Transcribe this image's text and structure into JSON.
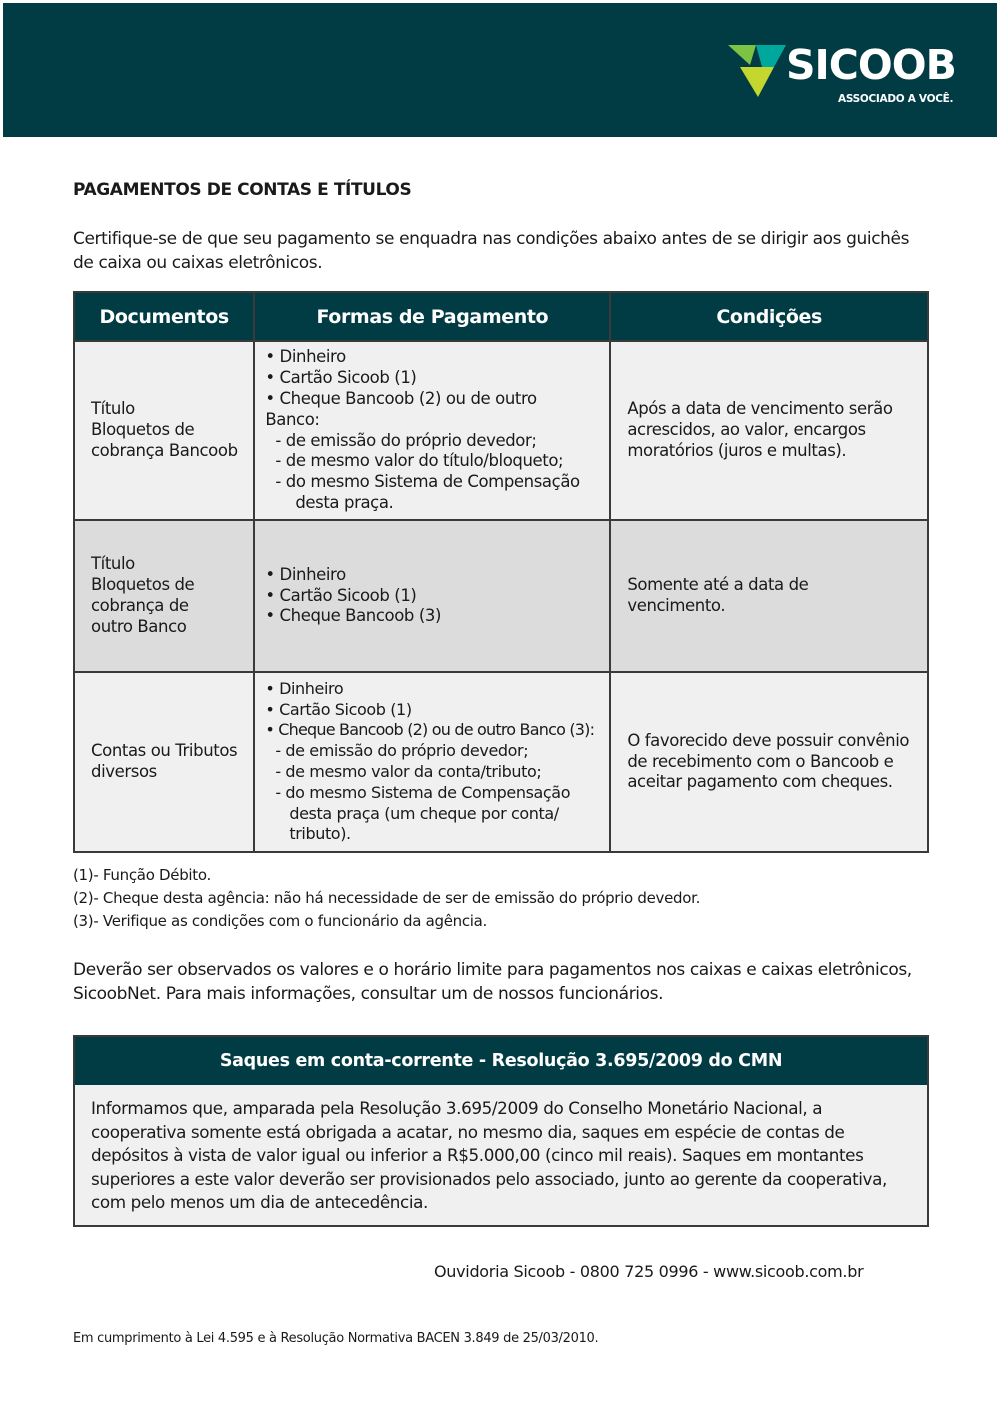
{
  "header": {
    "brand": "SICOOB",
    "tagline": "ASSOCIADO A VOCÊ.",
    "colors": {
      "band": "#013c44",
      "logo_green": "#7dc242",
      "logo_teal": "#00a79d",
      "logo_lime": "#c4d72e"
    }
  },
  "title": "PAGAMENTOS DE CONTAS E TÍTULOS",
  "intro": "Certifique-se de que seu pagamento se enquadra nas condições abaixo antes de se dirigir aos guichês de caixa ou caixas eletrônicos.",
  "table": {
    "headers": [
      "Documentos",
      "Formas de Pagamento",
      "Condições"
    ],
    "rows": [
      {
        "doc": [
          "Título",
          "Bloquetos de",
          "cobrança Bancoob"
        ],
        "forms": [
          "• Dinheiro",
          "• Cartão Sicoob (1)",
          "• Cheque Bancoob (2) ou de outro Banco:"
        ],
        "sub": [
          "- de emissão do próprio devedor;",
          "- de mesmo valor do título/bloqueto;",
          "- do mesmo Sistema de Compensação",
          "  desta praça."
        ],
        "cond": "Após a data de vencimento serão acrescidos, ao valor, encargos moratórios (juros e multas)."
      },
      {
        "doc": [
          "Título",
          "Bloquetos de",
          "cobrança de",
          "outro Banco"
        ],
        "forms": [
          "• Dinheiro",
          "• Cartão Sicoob (1)",
          "• Cheque Bancoob (3)"
        ],
        "sub": [],
        "cond": "Somente até a data de vencimento."
      },
      {
        "doc": [
          "Contas ou Tributos",
          "diversos"
        ],
        "forms": [
          "• Dinheiro",
          "• Cartão Sicoob (1)",
          "• Cheque Bancoob (2) ou de outro Banco (3):"
        ],
        "sub": [
          "- de emissão do próprio devedor;",
          "- de mesmo valor da conta/tributo;",
          "- do mesmo Sistema de Compensação",
          "  desta praça (um cheque por conta/",
          "  tributo)."
        ],
        "cond": "O favorecido deve possuir convênio de recebimento com o Bancoob e aceitar pagamento com cheques."
      }
    ]
  },
  "notes": [
    "(1)- Função Débito.",
    "(2)- Cheque desta agência: não há necessidade de ser de emissão do próprio devedor.",
    "(3)- Verifique as condições com o funcionário da agência."
  ],
  "observation": "Deverão ser observados os valores e o horário limite para pagamentos nos caixas e caixas eletrônicos, SicoobNet. Para mais informações, consultar um de nossos funcionários.",
  "saques": {
    "title": "Saques em conta-corrente  -  Resolução 3.695/2009 do CMN",
    "body": "Informamos que, amparada pela Resolução 3.695/2009 do Conselho Monetário Nacional, a cooperativa somente está obrigada a acatar, no mesmo dia, saques em espécie de contas de depósitos à vista de valor igual ou inferior a R$5.000,00 (cinco mil reais). Saques em montantes superiores a este valor deverão ser provisionados pelo associado, junto ao gerente da cooperativa, com pelo menos um dia de antecedência."
  },
  "ouvidoria": "Ouvidoria Sicoob - 0800 725 0996 - www.sicoob.com.br",
  "legal": "Em cumprimento à Lei 4.595 e à Resolução Normativa BACEN 3.849 de 25/03/2010."
}
